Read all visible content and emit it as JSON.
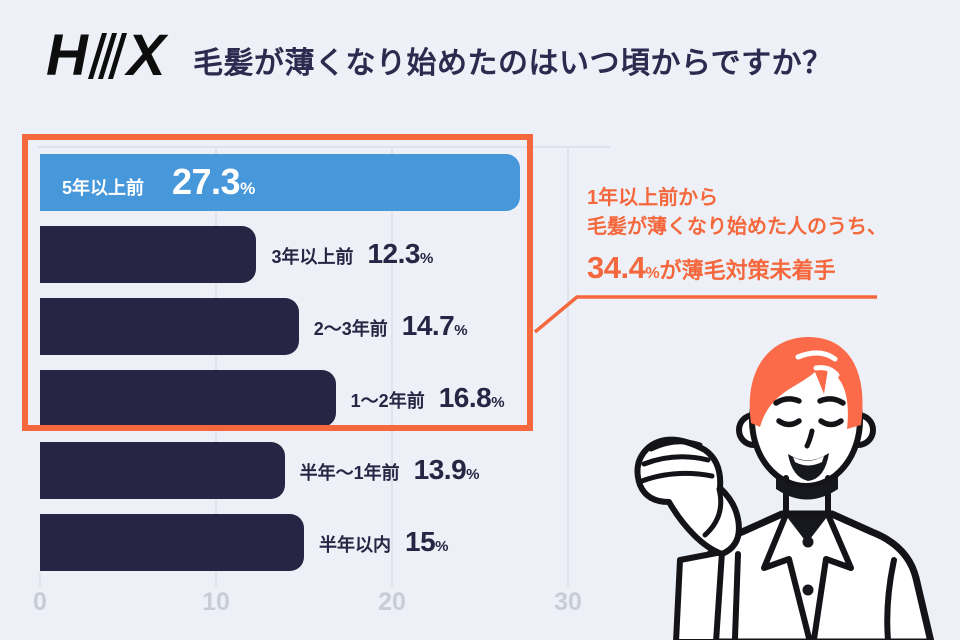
{
  "logo": {
    "letter_left": "H",
    "letter_right": "X",
    "slash_count": 3
  },
  "header": {
    "title": "毛髪が薄くなり始めたのはいつ頃からですか？"
  },
  "chart_data": {
    "type": "bar",
    "orientation": "horizontal",
    "title": "毛髪が薄くなり始めたのはいつ頃からですか？",
    "categories": [
      "5年以上前",
      "3年以上前",
      "2〜3年前",
      "1〜2年前",
      "半年〜1年前",
      "半年以内"
    ],
    "values": [
      27.3,
      12.3,
      14.7,
      16.8,
      13.9,
      15
    ],
    "value_labels": [
      "27.3",
      "12.3",
      "14.7",
      "16.8",
      "13.9",
      "15"
    ],
    "unit": "%",
    "highlighted_index": 0,
    "label_inside_for_highlight": true,
    "xlim": [
      0,
      30
    ],
    "x_ticks": [
      0,
      10,
      20,
      30
    ],
    "x_tick_labels": [
      "0",
      "10",
      "20",
      "30"
    ],
    "grid": "vertical-lines",
    "legend": "none"
  },
  "annotation": {
    "line1": "1年以上前から",
    "line2": "毛髪が薄くなり始めた人のうち、",
    "big_value": "34.4",
    "unit": "%",
    "rest": "が薄毛対策未着手"
  },
  "colors": {
    "bg": "#EDF0F6",
    "navy": "#272544",
    "navy-title": "#2C2A4E",
    "blue": "#4797DB",
    "orange": "#F5683D",
    "grid": "#DFE2EA",
    "axis": "#C8CCD6"
  }
}
